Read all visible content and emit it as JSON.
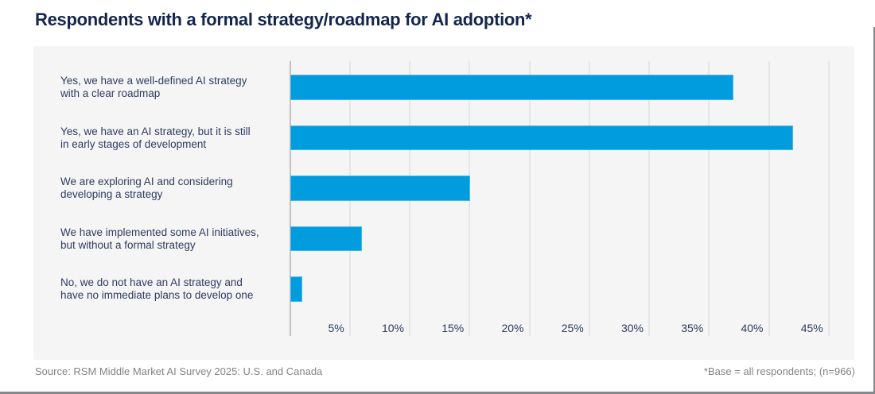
{
  "page": {
    "title": "Respondents with a formal strategy/roadmap for AI adoption*",
    "footer": {
      "source": "Source: RSM Middle Market AI Survey 2025: U.S. and Canada",
      "base_note": "*Base = all respondents; (n=966)"
    }
  },
  "colors": {
    "bar": "#009CDE",
    "title": "#14264E",
    "category_label": "#2E3D5E",
    "tick_label": "#2C3B5C",
    "panel_bg": "#F5F5F6",
    "gridline": "#E5E6E8",
    "axis_line": "#C1C2C4",
    "footer_text": "#808486",
    "frame": "#85898C"
  },
  "chart_data": {
    "type": "bar",
    "orientation": "horizontal",
    "title": "Respondents with a formal strategy/roadmap for AI adoption*",
    "categories": [
      "Yes, we have a well-defined AI strategy with a clear roadmap",
      "Yes, we have an AI strategy, but it is still in early stages of development",
      "We are exploring AI and considering developing a strategy",
      "We have implemented some AI initiatives, but without a formal strategy",
      "No, we do not have an AI strategy and have no immediate plans to develop one"
    ],
    "category_lines": [
      [
        "Yes, we have a well-defined AI strategy",
        "with a clear roadmap"
      ],
      [
        "Yes, we have an AI strategy, but it is still",
        "in early stages of development"
      ],
      [
        "We are exploring AI and considering",
        "developing a strategy"
      ],
      [
        "We have implemented some AI initiatives,",
        "but without a formal strategy"
      ],
      [
        "No, we do not have an AI strategy and",
        "have no immediate plans to develop one"
      ]
    ],
    "values": [
      37,
      42,
      15,
      6,
      1
    ],
    "unit": "%",
    "xlabel": "",
    "ylabel": "",
    "xlim": [
      0,
      45
    ],
    "xtick_values": [
      5,
      10,
      15,
      20,
      25,
      30,
      35,
      40,
      45
    ],
    "xtick_labels": [
      "5%",
      "10%",
      "15%",
      "20%",
      "25%",
      "30%",
      "35%",
      "40%",
      "45%"
    ],
    "grid": true,
    "legend": false
  }
}
